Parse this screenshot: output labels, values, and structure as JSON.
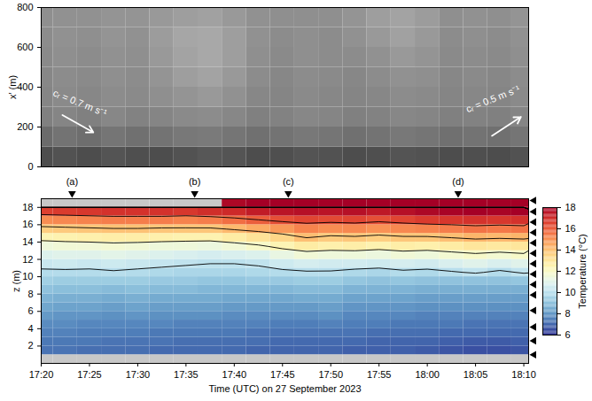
{
  "chart_data": [
    {
      "type": "heatmap",
      "y_label": "x′ (m)",
      "xlim": [
        1040,
        1090.5
      ],
      "ylim": [
        0,
        800
      ],
      "yticks": [
        0,
        200,
        400,
        600,
        800
      ],
      "tick_labels": "y",
      "value_range": [
        0,
        1
      ],
      "x": [
        1040,
        1042.5,
        1045,
        1047.5,
        1050,
        1052.5,
        1055,
        1057.5,
        1060,
        1062.5,
        1065,
        1067.5,
        1070,
        1072.5,
        1075,
        1077.5,
        1080,
        1082.5,
        1085,
        1087.5,
        1090
      ],
      "y": [
        50,
        150,
        250,
        350,
        450,
        550,
        650,
        750
      ],
      "values": [
        [
          0.3,
          0.32,
          0.3,
          0.33,
          0.31,
          0.3,
          0.32,
          0.34,
          0.33,
          0.3,
          0.31,
          0.33,
          0.32,
          0.3,
          0.31,
          0.33,
          0.32,
          0.3,
          0.31,
          0.3,
          0.32
        ],
        [
          0.42,
          0.45,
          0.43,
          0.46,
          0.44,
          0.45,
          0.47,
          0.48,
          0.46,
          0.44,
          0.45,
          0.47,
          0.46,
          0.44,
          0.45,
          0.47,
          0.46,
          0.44,
          0.45,
          0.44,
          0.46
        ],
        [
          0.5,
          0.52,
          0.5,
          0.53,
          0.51,
          0.52,
          0.54,
          0.55,
          0.53,
          0.5,
          0.51,
          0.53,
          0.52,
          0.5,
          0.51,
          0.53,
          0.52,
          0.5,
          0.51,
          0.5,
          0.52
        ],
        [
          0.52,
          0.54,
          0.53,
          0.55,
          0.54,
          0.56,
          0.58,
          0.6,
          0.57,
          0.53,
          0.52,
          0.54,
          0.53,
          0.52,
          0.53,
          0.55,
          0.54,
          0.52,
          0.53,
          0.52,
          0.54
        ],
        [
          0.53,
          0.55,
          0.54,
          0.56,
          0.55,
          0.58,
          0.62,
          0.64,
          0.6,
          0.55,
          0.53,
          0.55,
          0.54,
          0.53,
          0.55,
          0.57,
          0.56,
          0.53,
          0.54,
          0.53,
          0.55
        ],
        [
          0.54,
          0.56,
          0.55,
          0.57,
          0.56,
          0.6,
          0.64,
          0.66,
          0.62,
          0.56,
          0.54,
          0.56,
          0.55,
          0.55,
          0.57,
          0.6,
          0.58,
          0.54,
          0.55,
          0.54,
          0.56
        ],
        [
          0.55,
          0.57,
          0.56,
          0.58,
          0.57,
          0.61,
          0.65,
          0.66,
          0.62,
          0.57,
          0.55,
          0.56,
          0.55,
          0.57,
          0.6,
          0.63,
          0.6,
          0.55,
          0.56,
          0.55,
          0.57
        ],
        [
          0.56,
          0.57,
          0.57,
          0.58,
          0.58,
          0.6,
          0.62,
          0.63,
          0.6,
          0.57,
          0.56,
          0.56,
          0.56,
          0.58,
          0.62,
          0.64,
          0.61,
          0.56,
          0.57,
          0.56,
          0.58
        ]
      ],
      "annotations": [
        {
          "text": "cᵣ = 0.7 m s⁻¹",
          "x": 1044,
          "y": 320,
          "arrow": [
            1042.2,
            260,
            1045.4,
            173
          ]
        },
        {
          "text": "cᵣ = 0.5 m s⁻¹",
          "x": 1086.8,
          "y": 340,
          "arrow": [
            1086.7,
            156,
            1089.7,
            251
          ]
        }
      ]
    },
    {
      "type": "heatmap",
      "x_label": "Time (UTC) on 27 September 2023",
      "y_label": "z (m)",
      "xlim": [
        1040,
        1090.5
      ],
      "xticks": [
        {
          "value": 1040,
          "label": "17:20"
        },
        {
          "value": 1045,
          "label": "17:25"
        },
        {
          "value": 1050,
          "label": "17:30"
        },
        {
          "value": 1055,
          "label": "17:35"
        },
        {
          "value": 1060,
          "label": "17:40"
        },
        {
          "value": 1065,
          "label": "17:45"
        },
        {
          "value": 1070,
          "label": "17:50"
        },
        {
          "value": 1075,
          "label": "17:55"
        },
        {
          "value": 1080,
          "label": "18:00"
        },
        {
          "value": 1085,
          "label": "18:05"
        },
        {
          "value": 1090,
          "label": "18:10"
        }
      ],
      "ylim": [
        0,
        19
      ],
      "yticks": [
        2,
        4,
        6,
        8,
        10,
        12,
        14,
        16,
        18
      ],
      "x": [
        1040,
        1042.5,
        1045,
        1047.5,
        1050,
        1052.5,
        1055,
        1057.5,
        1060,
        1062.5,
        1065,
        1067.5,
        1070,
        1072.5,
        1075,
        1077.5,
        1080,
        1082.5,
        1085,
        1087.5,
        1090
      ],
      "y": [
        0.5,
        1.5,
        2.5,
        3.5,
        4.5,
        5.5,
        6.5,
        7.5,
        8.5,
        9.5,
        10.5,
        11.5,
        12.5,
        13.5,
        14.5,
        15.5,
        16.5,
        17.5,
        18.5
      ],
      "values": [
        [
          null,
          null,
          null,
          null,
          null,
          null,
          null,
          null,
          null,
          null,
          null,
          null,
          null,
          null,
          null,
          null,
          null,
          null,
          null,
          null,
          null
        ],
        [
          7.2,
          7.2,
          7.1,
          7.1,
          7.1,
          7.0,
          7.0,
          7.0,
          7.0,
          6.9,
          6.9,
          6.9,
          6.9,
          6.8,
          6.8,
          6.8,
          6.7,
          6.6,
          6.5,
          6.5,
          6.6
        ],
        [
          7.3,
          7.3,
          7.3,
          7.2,
          7.2,
          7.2,
          7.1,
          7.1,
          7.1,
          7.1,
          7.0,
          7.0,
          7.0,
          7.0,
          6.9,
          6.9,
          6.9,
          6.8,
          6.7,
          6.7,
          6.8
        ],
        [
          7.5,
          7.5,
          7.4,
          7.4,
          7.4,
          7.3,
          7.3,
          7.3,
          7.3,
          7.2,
          7.2,
          7.2,
          7.2,
          7.2,
          7.1,
          7.1,
          7.1,
          7.0,
          7.0,
          7.0,
          7.0
        ],
        [
          7.7,
          7.7,
          7.6,
          7.6,
          7.6,
          7.6,
          7.5,
          7.5,
          7.5,
          7.5,
          7.4,
          7.4,
          7.5,
          7.4,
          7.4,
          7.3,
          7.3,
          7.3,
          7.2,
          7.2,
          7.2
        ],
        [
          8.0,
          7.9,
          7.9,
          7.8,
          7.9,
          7.8,
          7.8,
          7.8,
          7.7,
          7.7,
          7.7,
          7.7,
          7.8,
          7.6,
          7.6,
          7.6,
          7.5,
          7.5,
          7.5,
          7.5,
          7.5
        ],
        [
          8.3,
          8.2,
          8.2,
          8.1,
          8.2,
          8.1,
          8.1,
          8.1,
          8.0,
          8.0,
          8.0,
          8.0,
          8.1,
          7.9,
          7.9,
          7.9,
          7.8,
          7.8,
          7.8,
          7.8,
          7.8
        ],
        [
          8.6,
          8.5,
          8.5,
          8.4,
          8.5,
          8.4,
          8.4,
          8.4,
          8.3,
          8.3,
          8.3,
          8.4,
          8.4,
          8.2,
          8.2,
          8.2,
          8.1,
          8.1,
          8.1,
          8.1,
          8.1
        ],
        [
          9.0,
          8.9,
          8.9,
          8.8,
          8.9,
          8.8,
          8.8,
          8.7,
          8.7,
          8.7,
          8.7,
          8.8,
          8.8,
          8.6,
          8.6,
          8.6,
          8.5,
          8.5,
          8.5,
          8.5,
          8.5
        ],
        [
          9.4,
          9.3,
          9.3,
          9.3,
          9.3,
          9.2,
          9.2,
          9.1,
          9.1,
          9.2,
          9.2,
          9.3,
          9.3,
          9.1,
          9.0,
          9.1,
          9.0,
          9.0,
          9.0,
          9.0,
          9.1
        ],
        [
          9.8,
          9.8,
          9.8,
          9.9,
          9.8,
          9.7,
          9.6,
          9.6,
          9.6,
          9.7,
          9.8,
          9.9,
          9.9,
          9.7,
          9.6,
          9.8,
          9.7,
          9.9,
          10.1,
          9.8,
          10.1
        ],
        [
          10.3,
          10.4,
          10.3,
          10.4,
          10.3,
          10.2,
          10.1,
          10.0,
          10.0,
          10.1,
          10.4,
          10.6,
          10.5,
          10.5,
          10.4,
          10.6,
          10.5,
          10.7,
          10.9,
          10.7,
          10.9
        ],
        [
          10.8,
          10.9,
          10.9,
          11.0,
          10.9,
          10.8,
          10.7,
          10.6,
          10.7,
          10.8,
          11.2,
          11.5,
          11.4,
          11.4,
          11.3,
          11.5,
          11.4,
          11.6,
          11.8,
          11.6,
          11.8
        ],
        [
          11.4,
          11.5,
          11.5,
          11.6,
          11.5,
          11.4,
          11.4,
          11.3,
          11.5,
          11.8,
          12.3,
          12.7,
          12.5,
          12.6,
          12.4,
          12.6,
          12.5,
          12.7,
          12.9,
          12.8,
          12.9
        ],
        [
          12.3,
          12.4,
          12.5,
          12.6,
          12.6,
          12.5,
          12.4,
          12.4,
          12.7,
          13.0,
          13.4,
          14.0,
          13.7,
          13.8,
          13.6,
          13.8,
          13.8,
          14.0,
          14.2,
          14.1,
          14.2
        ],
        [
          13.6,
          13.7,
          13.8,
          13.9,
          13.9,
          13.8,
          13.8,
          13.8,
          14.1,
          14.4,
          14.8,
          15.2,
          15.0,
          15.1,
          14.9,
          15.1,
          15.2,
          15.3,
          15.5,
          15.4,
          15.5
        ],
        [
          15.0,
          15.1,
          15.2,
          15.3,
          15.3,
          15.3,
          15.2,
          15.3,
          15.6,
          15.9,
          16.2,
          16.4,
          16.3,
          16.4,
          16.2,
          16.4,
          16.6,
          16.7,
          16.8,
          16.7,
          16.8
        ],
        [
          16.5,
          16.6,
          16.7,
          16.8,
          16.8,
          16.8,
          16.7,
          16.9,
          17.0,
          17.3,
          17.5,
          17.6,
          17.5,
          17.6,
          17.4,
          17.6,
          17.8,
          17.9,
          18.0,
          17.9,
          18.0
        ],
        [
          null,
          null,
          null,
          null,
          null,
          null,
          null,
          null,
          17.8,
          18.2,
          18.4,
          18.5,
          18.4,
          18.5,
          18.3,
          18.5,
          18.7,
          18.8,
          18.8,
          18.8,
          18.8
        ]
      ],
      "contours": [
        10,
        12,
        14,
        16
      ],
      "colorbar": {
        "label": "Temperature (°C)",
        "range": [
          6,
          18
        ],
        "ticks": [
          6,
          8,
          10,
          12,
          14,
          16,
          18
        ],
        "color": "RdYlBu"
      },
      "sensor_z": [
        18.8,
        17.5,
        16.3,
        15.1,
        13.9,
        12.7,
        11.5,
        10.3,
        9.1,
        7.9,
        6.1,
        4.2,
        2.6,
        1.0
      ],
      "markers": [
        {
          "label": "(a)",
          "x": 1043.2
        },
        {
          "label": "(b)",
          "x": 1055.9
        },
        {
          "label": "(c)",
          "x": 1065.6
        },
        {
          "label": "(d)",
          "x": 1083.2
        }
      ]
    }
  ]
}
